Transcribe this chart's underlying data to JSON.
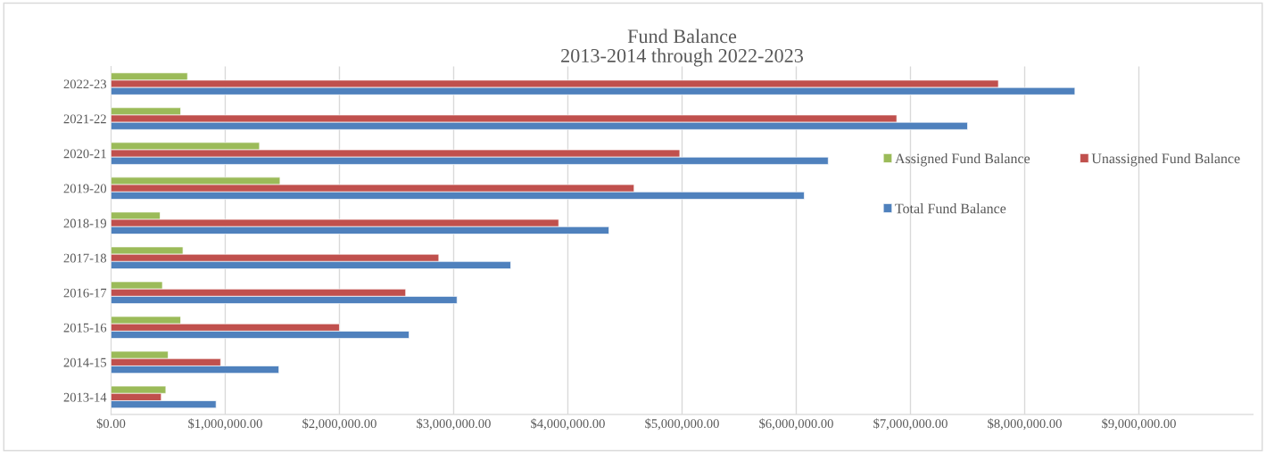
{
  "chart_data": {
    "type": "bar",
    "orientation": "horizontal",
    "title": "Fund Balance\n2013-2014 through 2022-2023",
    "categories": [
      "2022-23",
      "2021-22",
      "2020-21",
      "2019-20",
      "2018-19",
      "2017-18",
      "2016-17",
      "2015-16",
      "2014-15",
      "2013-14"
    ],
    "series": [
      {
        "name": "Assigned Fund Balance",
        "color": "#9bbb59",
        "values": [
          670000,
          610000,
          1300000,
          1480000,
          430000,
          630000,
          450000,
          610000,
          500000,
          480000
        ]
      },
      {
        "name": "Unassigned Fund Balance",
        "color": "#c0504d",
        "values": [
          7770000,
          6880000,
          4980000,
          4580000,
          3920000,
          2870000,
          2580000,
          2000000,
          960000,
          440000
        ]
      },
      {
        "name": "Total Fund Balance",
        "color": "#4f81bd",
        "values": [
          8440000,
          7500000,
          6280000,
          6070000,
          4360000,
          3500000,
          3030000,
          2610000,
          1470000,
          920000
        ]
      }
    ],
    "xlim": [
      0,
      10000000
    ],
    "xticks": [
      {
        "value": 0,
        "label": "$0.00"
      },
      {
        "value": 1000000,
        "label": "$1,000,000.00"
      },
      {
        "value": 2000000,
        "label": "$2,000,000.00"
      },
      {
        "value": 3000000,
        "label": "$3,000,000.00"
      },
      {
        "value": 4000000,
        "label": "$4,000,000.00"
      },
      {
        "value": 5000000,
        "label": "$5,000,000.00"
      },
      {
        "value": 6000000,
        "label": "$6,000,000.00"
      },
      {
        "value": 7000000,
        "label": "$7,000,000.00"
      },
      {
        "value": 8000000,
        "label": "$8,000,000.00"
      },
      {
        "value": 9000000,
        "label": "$9,000,000.00"
      }
    ],
    "grid": "x",
    "legend": "right"
  }
}
